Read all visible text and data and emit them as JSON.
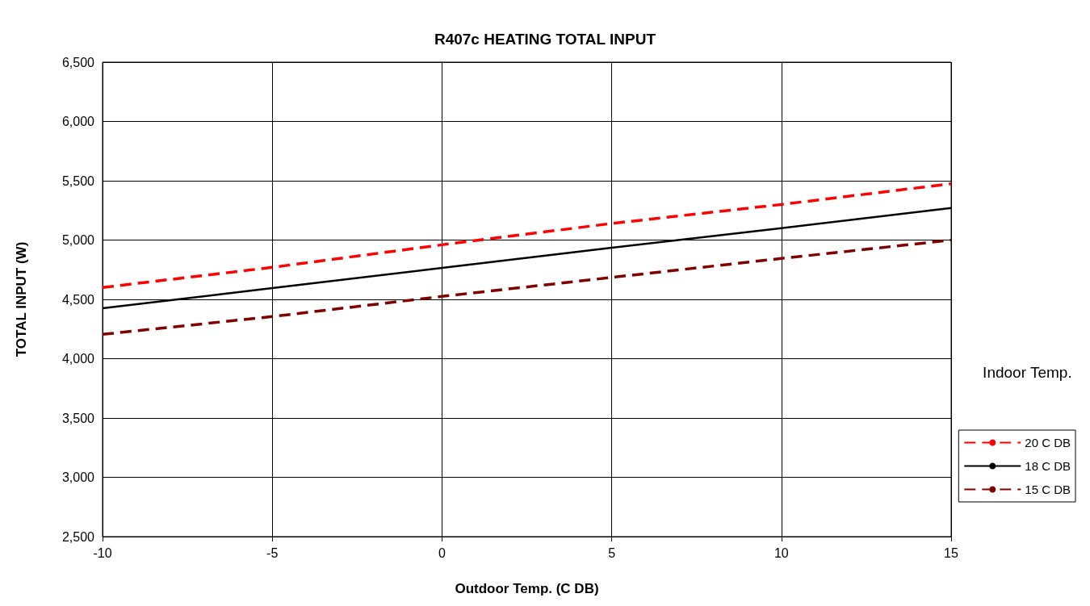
{
  "chart_data": {
    "type": "line",
    "title": "R407c HEATING TOTAL INPUT",
    "xlabel": "Outdoor Temp. (C DB)",
    "ylabel": "TOTAL INPUT (W)",
    "legend_title": "Indoor Temp.",
    "x": [
      -10,
      -5,
      0,
      5,
      10,
      15
    ],
    "series": [
      {
        "name": "20 C DB",
        "color": "#ff0000",
        "line_style": "dashed",
        "values": [
          4600,
          4770,
          4960,
          5140,
          5300,
          5475
        ]
      },
      {
        "name": "18 C DB",
        "color": "#000000",
        "line_style": "solid",
        "values": [
          4425,
          4595,
          4765,
          4935,
          5100,
          5270
        ]
      },
      {
        "name": "15 C DB",
        "color": "#800000",
        "line_style": "dashed",
        "values": [
          4205,
          4355,
          4525,
          4685,
          4845,
          5000
        ]
      }
    ],
    "xlim": [
      -10,
      15
    ],
    "xticks": [
      -10,
      -5,
      0,
      5,
      10,
      15
    ],
    "ylim": [
      2500,
      6500
    ],
    "yticks": [
      {
        "value": 2500,
        "label": "2,500"
      },
      {
        "value": 3000,
        "label": "3,000"
      },
      {
        "value": 3500,
        "label": "3,500"
      },
      {
        "value": 4000,
        "label": "4,000"
      },
      {
        "value": 4500,
        "label": "4,500"
      },
      {
        "value": 5000,
        "label": "5,000"
      },
      {
        "value": 5500,
        "label": "5,500"
      },
      {
        "value": 6000,
        "label": "6,000"
      },
      {
        "value": 6500,
        "label": "6,500"
      }
    ],
    "grid": true,
    "legend": "bottom right",
    "marker": "none"
  }
}
